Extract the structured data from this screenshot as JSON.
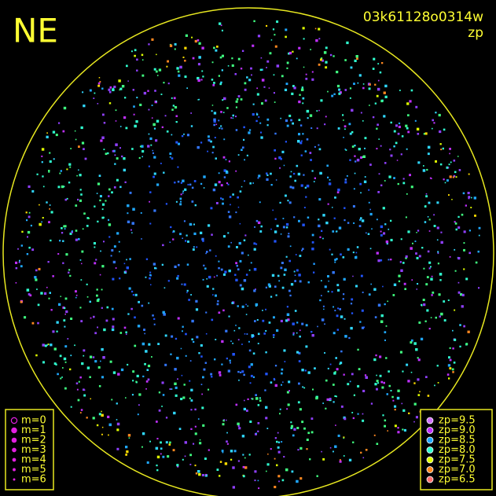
{
  "header": {
    "direction": "NE",
    "image_id": "03k61128o0314w",
    "mode": "zp"
  },
  "magnitude_legend": [
    "m=0",
    "m=1",
    "m=2",
    "m=3",
    "m=4",
    "m=5",
    "m=6"
  ],
  "zp_legend": [
    {
      "label": "zp=9.5",
      "color": "#d070ff"
    },
    {
      "label": "zp=9.0",
      "color": "#c030ff"
    },
    {
      "label": "zp=8.5",
      "color": "#20a8ff"
    },
    {
      "label": "zp=8.0",
      "color": "#30ffd0"
    },
    {
      "label": "zp=7.5",
      "color": "#e0ff00"
    },
    {
      "label": "zp=7.0",
      "color": "#ff8820"
    },
    {
      "label": "zp=6.5",
      "color": "#ff7070"
    }
  ]
}
